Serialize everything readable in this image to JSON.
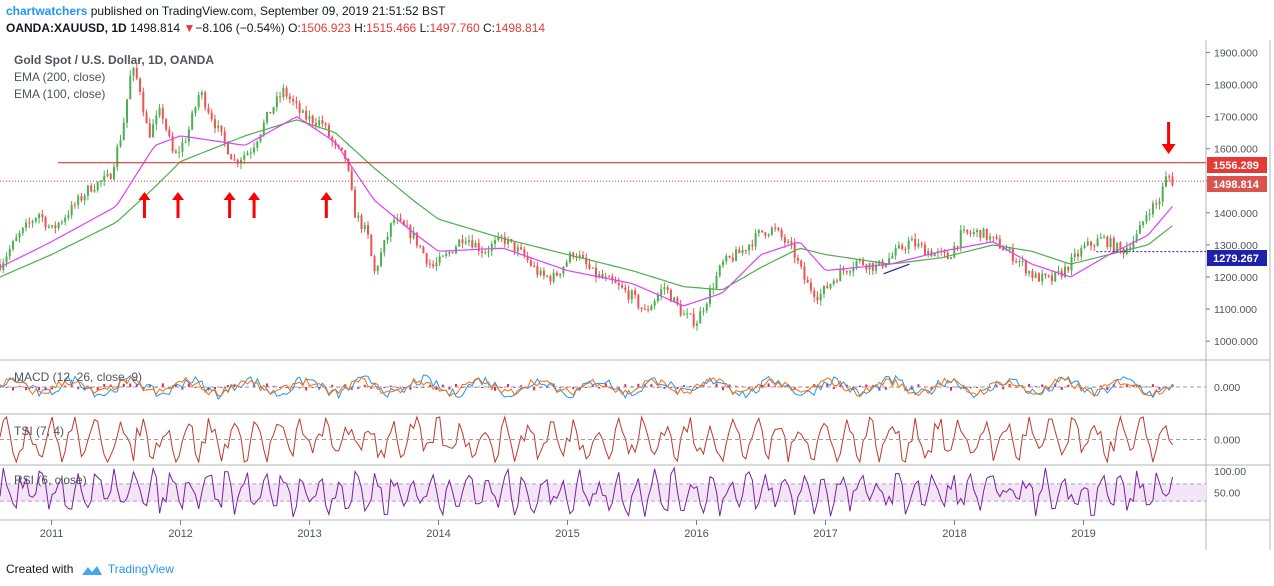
{
  "header": {
    "author": "chartwatchers",
    "published": "published on TradingView.com, September 09, 2019 21:51:52 BST",
    "symbol": "OANDA:XAUUSD, 1D",
    "last": "1498.814",
    "change_arrow": "▼",
    "change": "−8.106 (−0.54%)",
    "o_label": "O:",
    "o_value": "1506.923",
    "h_label": "H:",
    "h_value": "1515.466",
    "l_label": "L:",
    "l_value": "1497.760",
    "c_label": "C:",
    "c_value": "1498.814"
  },
  "legend": {
    "title": "Gold Spot / U.S. Dollar, 1D, OANDA",
    "ema200": "EMA (200, close)",
    "ema100": "EMA (100, close)"
  },
  "panes": {
    "macd_label": "MACD (12, 26, close, 9)",
    "tsi_label": "TSI (7, 4)",
    "rsi_label": "RSI (6, close)"
  },
  "price_labels": {
    "resistance": "1556.289",
    "last": "1498.814",
    "support": "1279.267"
  },
  "footer": {
    "created_with": "Created with",
    "brand": "TradingView"
  },
  "colors": {
    "ema200": "#4caf50",
    "ema100": "#e040fb",
    "resistance": "#e53935",
    "support": "#1e22aa",
    "arrows": "#ff0000",
    "macd_line": "#2196f3",
    "macd_signal": "#ff6d00",
    "macd_hist": "#e91e63",
    "tsi": "#c0392b",
    "rsi": "#7b1fa2",
    "rsi_band": "#f3e5f5",
    "candle_up": "#4caf50",
    "candle_down": "#ef5350"
  },
  "chart_data": [
    {
      "type": "line",
      "title": "Gold Spot / U.S. Dollar, 1D, OANDA",
      "x_ticks": [
        "2011",
        "2012",
        "2013",
        "2014",
        "2015",
        "2016",
        "2017",
        "2018",
        "2019"
      ],
      "y_ticks": [
        "1900.000",
        "1800.000",
        "1700.000",
        "1600.000",
        "1500.000",
        "1400.000",
        "1300.000",
        "1200.000",
        "1100.000",
        "1000.000"
      ],
      "ylim": [
        960,
        1920
      ],
      "xlim": [
        2010.6,
        2019.95
      ],
      "series": [
        {
          "name": "Gold Spot / U.S. Dollar",
          "style": "candles",
          "x": [
            2010.6,
            2010.75,
            2010.9,
            2011.0,
            2011.15,
            2011.3,
            2011.45,
            2011.55,
            2011.62,
            2011.68,
            2011.75,
            2011.85,
            2011.95,
            2012.05,
            2012.15,
            2012.3,
            2012.42,
            2012.55,
            2012.7,
            2012.8,
            2012.95,
            2013.1,
            2013.2,
            2013.28,
            2013.35,
            2013.45,
            2013.5,
            2013.65,
            2013.8,
            2013.95,
            2014.05,
            2014.2,
            2014.35,
            2014.5,
            2014.65,
            2014.8,
            2014.9,
            2015.05,
            2015.2,
            2015.35,
            2015.5,
            2015.6,
            2015.75,
            2015.9,
            2016.0,
            2016.1,
            2016.2,
            2016.35,
            2016.5,
            2016.6,
            2016.75,
            2016.85,
            2016.95,
            2017.1,
            2017.25,
            2017.4,
            2017.5,
            2017.65,
            2017.8,
            2017.95,
            2018.05,
            2018.2,
            2018.35,
            2018.5,
            2018.62,
            2018.75,
            2018.85,
            2019.0,
            2019.15,
            2019.3,
            2019.42,
            2019.5,
            2019.58,
            2019.65,
            2019.69
          ],
          "y": [
            1240,
            1330,
            1400,
            1345,
            1410,
            1480,
            1510,
            1660,
            1850,
            1800,
            1640,
            1720,
            1570,
            1640,
            1780,
            1650,
            1560,
            1600,
            1720,
            1780,
            1700,
            1680,
            1600,
            1570,
            1400,
            1330,
            1210,
            1380,
            1330,
            1230,
            1260,
            1330,
            1280,
            1320,
            1270,
            1200,
            1200,
            1280,
            1210,
            1180,
            1140,
            1090,
            1170,
            1080,
            1060,
            1150,
            1240,
            1280,
            1340,
            1350,
            1280,
            1180,
            1140,
            1210,
            1250,
            1230,
            1260,
            1310,
            1280,
            1260,
            1330,
            1340,
            1300,
            1250,
            1200,
            1190,
            1220,
            1290,
            1320,
            1280,
            1330,
            1410,
            1430,
            1520,
            1499
          ]
        },
        {
          "name": "EMA (200, close)",
          "x": [
            2010.6,
            2011.0,
            2011.5,
            2011.8,
            2012.0,
            2012.5,
            2012.9,
            2013.2,
            2013.5,
            2013.8,
            2014.0,
            2014.5,
            2015.0,
            2015.5,
            2015.9,
            2016.2,
            2016.5,
            2016.8,
            2017.0,
            2017.5,
            2017.9,
            2018.3,
            2018.6,
            2018.9,
            2019.2,
            2019.5,
            2019.69
          ],
          "y": [
            1200,
            1270,
            1370,
            1480,
            1560,
            1640,
            1690,
            1650,
            1540,
            1440,
            1380,
            1320,
            1270,
            1220,
            1170,
            1160,
            1230,
            1290,
            1270,
            1240,
            1260,
            1300,
            1280,
            1240,
            1270,
            1300,
            1360
          ]
        },
        {
          "name": "EMA (100, close)",
          "x": [
            2010.6,
            2011.0,
            2011.5,
            2011.8,
            2012.0,
            2012.5,
            2012.9,
            2013.2,
            2013.5,
            2013.8,
            2014.0,
            2014.5,
            2015.0,
            2015.5,
            2015.9,
            2016.2,
            2016.5,
            2016.8,
            2017.0,
            2017.5,
            2017.9,
            2018.3,
            2018.6,
            2018.9,
            2019.2,
            2019.5,
            2019.69
          ],
          "y": [
            1230,
            1310,
            1420,
            1610,
            1640,
            1610,
            1700,
            1620,
            1440,
            1340,
            1280,
            1290,
            1220,
            1180,
            1110,
            1150,
            1270,
            1310,
            1220,
            1240,
            1280,
            1310,
            1240,
            1200,
            1270,
            1330,
            1420
          ]
        }
      ],
      "annotations": {
        "resistance_level": 1556.289,
        "support_level": 1279.267,
        "last_price": 1498.814,
        "up_arrows_x": [
          2011.72,
          2011.98,
          2012.38,
          2012.57,
          2013.13
        ],
        "down_arrow_x": 2019.66
      }
    },
    {
      "type": "line",
      "title": "MACD (12, 26, close, 9)",
      "y_ticks": [
        "0.000"
      ],
      "ylim": [
        -40,
        40
      ]
    },
    {
      "type": "line",
      "title": "TSI (7, 4)",
      "y_ticks": [
        "0.000"
      ],
      "ylim": [
        -1,
        1
      ]
    },
    {
      "type": "line",
      "title": "RSI (6, close)",
      "y_ticks": [
        "100.00",
        "50.00"
      ],
      "ylim": [
        0,
        100
      ],
      "bands": [
        30,
        70
      ]
    }
  ]
}
